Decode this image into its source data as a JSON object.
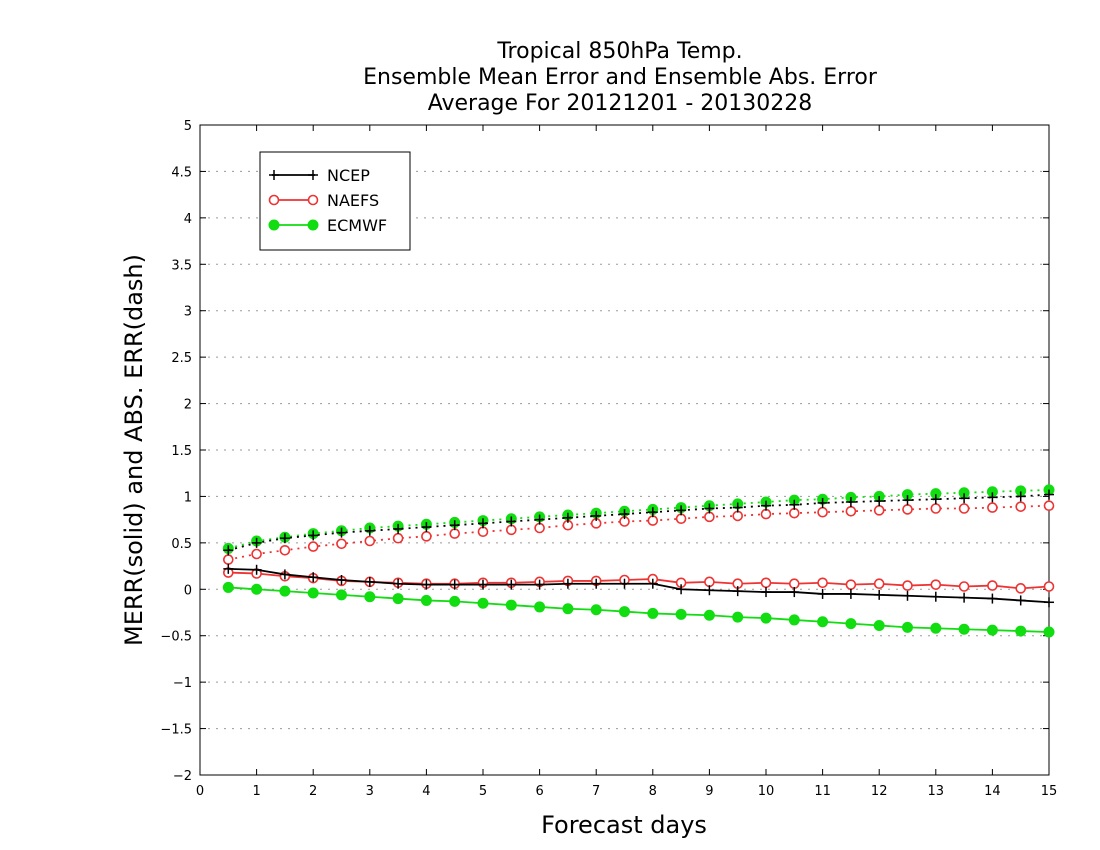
{
  "chart_data": {
    "type": "line",
    "title": [
      "Tropical 850hPa Temp.",
      "Ensemble Mean Error and Ensemble Abs. Error",
      "Average For 20121201 - 20130228"
    ],
    "xlabel": "Forecast days",
    "ylabel": "MERR(solid) and ABS. ERR(dash)",
    "xlim": [
      0,
      15
    ],
    "ylim": [
      -2,
      5
    ],
    "xticks": [
      "0",
      "1",
      "2",
      "3",
      "4",
      "5",
      "6",
      "7",
      "8",
      "9",
      "10",
      "11",
      "12",
      "13",
      "14",
      "15"
    ],
    "yticks": [
      "−2",
      "−1.5",
      "−1",
      "−0.5",
      "0",
      "0.5",
      "1",
      "1.5",
      "2",
      "2.5",
      "3",
      "3.5",
      "4",
      "4.5",
      "5"
    ],
    "grid": "horizontal dotted",
    "legend_position": "top-left",
    "x": [
      0.5,
      1,
      1.5,
      2,
      2.5,
      3,
      3.5,
      4,
      4.5,
      5,
      5.5,
      6,
      6.5,
      7,
      7.5,
      8,
      8.5,
      9,
      9.5,
      10,
      10.5,
      11,
      11.5,
      12,
      12.5,
      13,
      13.5,
      14,
      14.5,
      15
    ],
    "series": [
      {
        "name": "NCEP",
        "color": "#000000",
        "marker": "plus",
        "merr": [
          0.22,
          0.21,
          0.16,
          0.13,
          0.1,
          0.08,
          0.06,
          0.05,
          0.05,
          0.05,
          0.05,
          0.05,
          0.06,
          0.06,
          0.06,
          0.06,
          0.0,
          -0.01,
          -0.02,
          -0.03,
          -0.03,
          -0.05,
          -0.05,
          -0.06,
          -0.07,
          -0.08,
          -0.09,
          -0.1,
          -0.12,
          -0.14
        ],
        "abs_err": [
          0.42,
          0.5,
          0.55,
          0.58,
          0.61,
          0.63,
          0.65,
          0.67,
          0.69,
          0.71,
          0.73,
          0.75,
          0.77,
          0.79,
          0.81,
          0.83,
          0.85,
          0.87,
          0.88,
          0.9,
          0.91,
          0.93,
          0.94,
          0.95,
          0.96,
          0.97,
          0.98,
          0.99,
          1.0,
          1.02
        ]
      },
      {
        "name": "NAEFS",
        "color": "#ee3333",
        "marker": "open-circle",
        "merr": [
          0.18,
          0.17,
          0.14,
          0.12,
          0.09,
          0.08,
          0.07,
          0.06,
          0.06,
          0.07,
          0.07,
          0.08,
          0.09,
          0.09,
          0.1,
          0.11,
          0.07,
          0.08,
          0.06,
          0.07,
          0.06,
          0.07,
          0.05,
          0.06,
          0.04,
          0.05,
          0.03,
          0.04,
          0.01,
          0.03
        ],
        "abs_err": [
          0.32,
          0.38,
          0.42,
          0.46,
          0.49,
          0.52,
          0.55,
          0.57,
          0.6,
          0.62,
          0.64,
          0.66,
          0.69,
          0.71,
          0.73,
          0.74,
          0.76,
          0.78,
          0.79,
          0.81,
          0.82,
          0.83,
          0.84,
          0.85,
          0.86,
          0.87,
          0.87,
          0.88,
          0.89,
          0.9
        ]
      },
      {
        "name": "ECMWF",
        "color": "#11dd11",
        "marker": "filled-circle",
        "merr": [
          0.02,
          0.0,
          -0.02,
          -0.04,
          -0.06,
          -0.08,
          -0.1,
          -0.12,
          -0.13,
          -0.15,
          -0.17,
          -0.19,
          -0.21,
          -0.22,
          -0.24,
          -0.26,
          -0.27,
          -0.28,
          -0.3,
          -0.31,
          -0.33,
          -0.35,
          -0.37,
          -0.39,
          -0.41,
          -0.42,
          -0.43,
          -0.44,
          -0.45,
          -0.46
        ],
        "abs_err": [
          0.44,
          0.52,
          0.56,
          0.6,
          0.63,
          0.66,
          0.68,
          0.7,
          0.72,
          0.74,
          0.76,
          0.78,
          0.8,
          0.82,
          0.84,
          0.86,
          0.88,
          0.9,
          0.92,
          0.94,
          0.96,
          0.97,
          0.99,
          1.0,
          1.02,
          1.03,
          1.04,
          1.05,
          1.06,
          1.07
        ]
      }
    ]
  }
}
